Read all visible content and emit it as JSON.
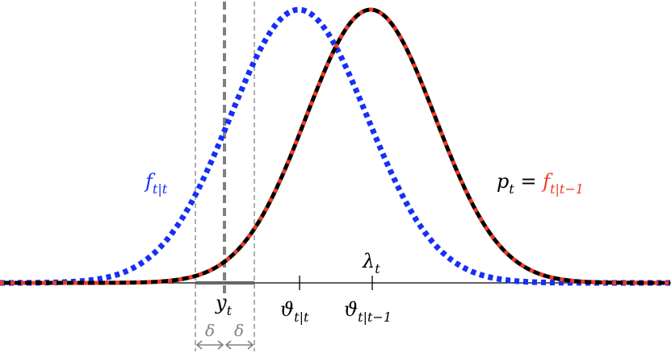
{
  "labels": {
    "f_main": "f",
    "f_sub": "t|t",
    "p_main": "p",
    "p_sub": "t",
    "equals": " = ",
    "f2_main": "f",
    "f2_sub": "t|t−1",
    "lambda_main": "λ",
    "lambda_sub": "t",
    "y_main": "y",
    "y_sub": "t",
    "theta1_main": "ϑ",
    "theta1_sub": "t|t",
    "theta2_main": "ϑ",
    "theta2_sub": "t|t−1",
    "delta_left": "δ",
    "delta_right": "δ"
  },
  "colors": {
    "blue": "#1530f5",
    "red": "#f03a22",
    "black": "#000000",
    "gray": "#808080",
    "dashgray": "#8c8c8c"
  },
  "curves": {
    "filter_density": {
      "name": "f_{t|t}",
      "style": "dotted",
      "color": "blue",
      "mean": "ϑ_{t|t}"
    },
    "predictive_density": {
      "name": "p_t = f_{t|t-1}",
      "style": "solid+dotted",
      "color": "black/red",
      "mean": "ϑ_{t|t-1}"
    }
  }
}
